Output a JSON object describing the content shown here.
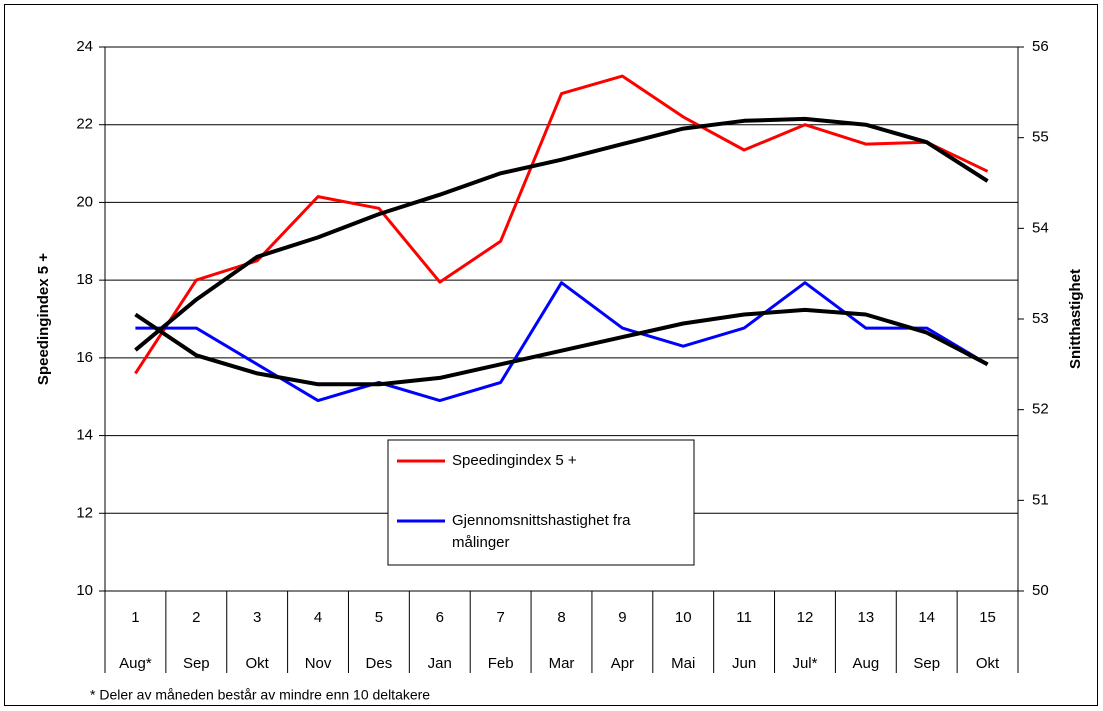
{
  "chart_data": {
    "type": "line",
    "categories": [
      "1",
      "2",
      "3",
      "4",
      "5",
      "6",
      "7",
      "8",
      "9",
      "10",
      "11",
      "12",
      "13",
      "14",
      "15"
    ],
    "months": [
      "Aug*",
      "Sep",
      "Okt",
      "Nov",
      "Des",
      "Jan",
      "Feb",
      "Mar",
      "Apr",
      "Mai",
      "Jun",
      "Jul*",
      "Aug",
      "Sep",
      "Okt"
    ],
    "ylabel": "Speedingindex 5 +",
    "y2label": "Snitthastighet",
    "footnote": "* Deler av måneden består av mindre enn 10 deltakere",
    "ylim": [
      10,
      24
    ],
    "yticks": [
      10,
      12,
      14,
      16,
      18,
      20,
      22,
      24
    ],
    "y2lim": [
      50,
      56
    ],
    "y2ticks": [
      50,
      51,
      52,
      53,
      54,
      55,
      56
    ],
    "grid": true,
    "series": [
      {
        "name": "Speedingindex 5 +",
        "color": "#ff0000",
        "values": [
          15.6,
          18.0,
          18.5,
          20.15,
          19.85,
          17.95,
          19.0,
          22.8,
          23.25,
          22.2,
          21.35,
          22.0,
          21.5,
          21.55,
          20.8
        ]
      },
      {
        "name": "Gjennomsnittshastighet fra målinger",
        "color": "#0000ff",
        "axis": "y2",
        "values": [
          52.9,
          52.9,
          52.5,
          52.1,
          52.3,
          52.1,
          52.3,
          53.4,
          52.9,
          52.7,
          52.9,
          53.4,
          52.9,
          52.9,
          52.5
        ]
      },
      {
        "color": "#000000",
        "values": [
          16.2,
          17.5,
          18.6,
          19.1,
          19.7,
          20.2,
          20.75,
          21.1,
          21.5,
          21.9,
          22.1,
          22.15,
          22.0,
          21.55,
          20.55
        ]
      },
      {
        "color": "#000000",
        "axis": "y2",
        "values": [
          53.05,
          52.6,
          52.4,
          52.28,
          52.28,
          52.35,
          52.5,
          52.65,
          52.8,
          52.95,
          53.05,
          53.1,
          53.05,
          52.85,
          52.5
        ]
      }
    ]
  }
}
